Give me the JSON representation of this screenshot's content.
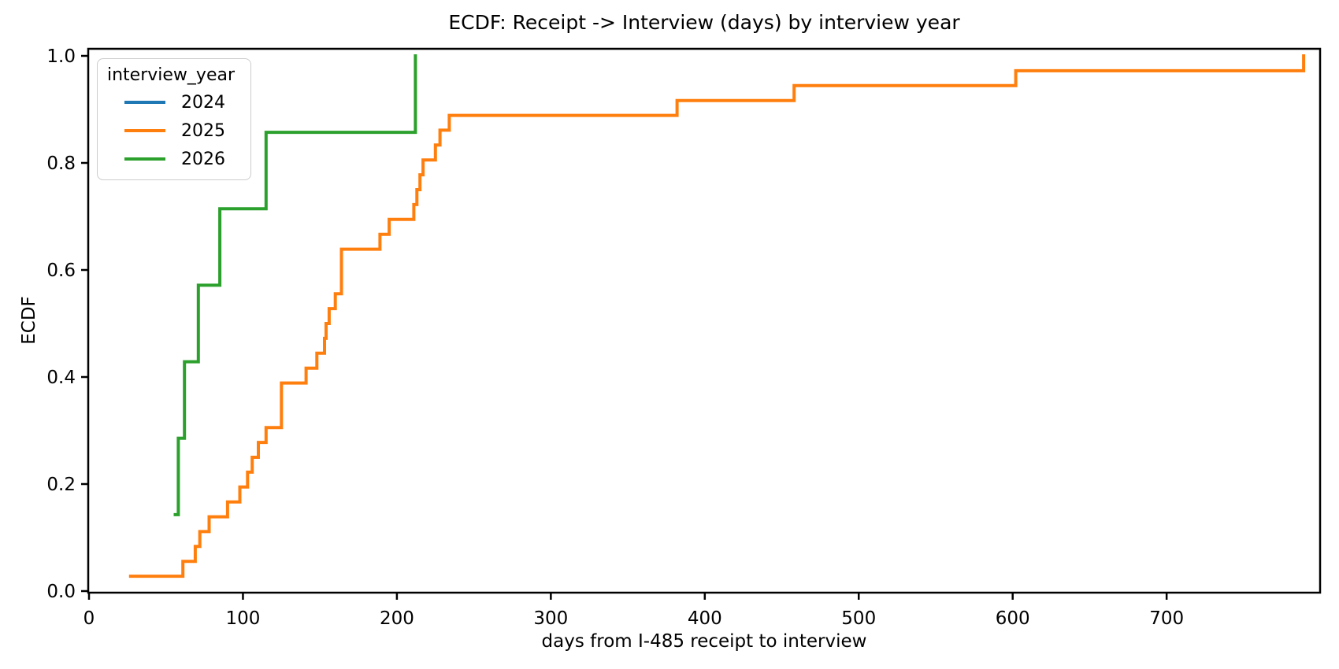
{
  "chart_data": {
    "type": "line",
    "subtype": "ecdf_step",
    "title": "ECDF: Receipt -> Interview (days) by interview year",
    "xlabel": "days from I-485 receipt to interview",
    "ylabel": "ECDF",
    "xlim": [
      0,
      800
    ],
    "ylim": [
      0.0,
      1.0
    ],
    "x_ticks": [
      0,
      100,
      200,
      300,
      400,
      500,
      600,
      700
    ],
    "y_ticks": [
      0.0,
      0.2,
      0.4,
      0.6,
      0.8,
      1.0
    ],
    "grid": false,
    "legend": {
      "title": "interview_year",
      "position": "upper left"
    },
    "series": [
      {
        "name": "2024",
        "color": "#1f77b4",
        "values": []
      },
      {
        "name": "2025",
        "color": "#ff7f0e",
        "values": [
          27,
          61,
          69,
          72,
          78,
          90,
          98,
          103,
          106,
          110,
          115,
          125,
          125,
          125,
          141,
          148,
          153,
          154,
          156,
          160,
          164,
          164,
          164,
          189,
          195,
          211,
          213,
          215,
          217,
          225,
          228,
          234,
          382,
          458,
          602,
          789
        ]
      },
      {
        "name": "2026",
        "color": "#2ca02c",
        "values": [
          56,
          58,
          62,
          71,
          85,
          115,
          212
        ]
      }
    ]
  }
}
